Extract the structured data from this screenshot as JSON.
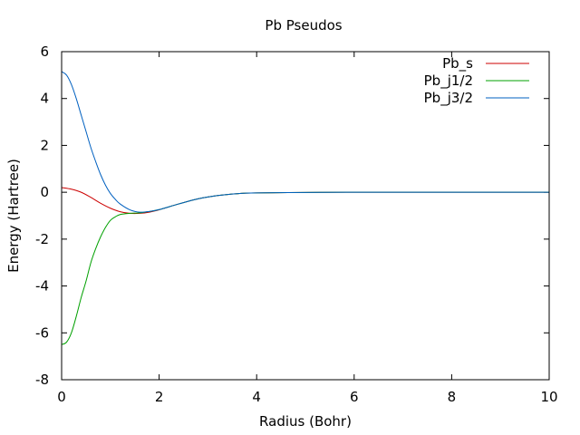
{
  "chart_data": {
    "type": "line",
    "title": "Pb Pseudos",
    "xlabel": "Radius (Bohr)",
    "ylabel": "Energy (Hartree)",
    "xlim": [
      0,
      10
    ],
    "ylim": [
      -8,
      6
    ],
    "xticks": [
      0,
      2,
      4,
      6,
      8,
      10
    ],
    "yticks": [
      -8,
      -6,
      -4,
      -2,
      0,
      2,
      4,
      6
    ],
    "grid": false,
    "legend_position": "top-right",
    "series": [
      {
        "name": "Pb_s",
        "color": "#cc0000",
        "x": [
          0,
          0.2,
          0.4,
          0.6,
          0.8,
          1.0,
          1.2,
          1.4,
          1.6,
          1.8,
          2.0,
          2.4,
          2.8,
          3.2,
          3.6,
          4.0,
          5.0,
          6.0,
          8.0,
          10.0
        ],
        "y": [
          0.2,
          0.13,
          0.0,
          -0.22,
          -0.47,
          -0.68,
          -0.83,
          -0.9,
          -0.9,
          -0.85,
          -0.75,
          -0.5,
          -0.28,
          -0.14,
          -0.06,
          -0.03,
          -0.01,
          0.0,
          0.0,
          0.0
        ]
      },
      {
        "name": "Pb_j1/2",
        "color": "#00a000",
        "x": [
          0,
          0.1,
          0.2,
          0.3,
          0.4,
          0.5,
          0.6,
          0.7,
          0.8,
          0.9,
          1.0,
          1.1,
          1.2,
          1.4,
          1.6,
          1.8,
          2.0,
          2.4,
          2.8,
          3.2,
          3.6,
          4.0,
          5.0,
          6.0,
          8.0,
          10.0
        ],
        "y": [
          -6.5,
          -6.4,
          -6.0,
          -5.3,
          -4.5,
          -3.8,
          -3.0,
          -2.4,
          -1.9,
          -1.5,
          -1.2,
          -1.05,
          -0.95,
          -0.9,
          -0.88,
          -0.82,
          -0.74,
          -0.5,
          -0.28,
          -0.14,
          -0.06,
          -0.03,
          -0.01,
          0.0,
          0.0,
          0.0
        ]
      },
      {
        "name": "Pb_j3/2",
        "color": "#0060c0",
        "x": [
          0,
          0.1,
          0.2,
          0.3,
          0.4,
          0.5,
          0.6,
          0.7,
          0.8,
          0.9,
          1.0,
          1.1,
          1.2,
          1.4,
          1.6,
          1.8,
          2.0,
          2.4,
          2.8,
          3.2,
          3.6,
          4.0,
          5.0,
          6.0,
          8.0,
          10.0
        ],
        "y": [
          5.15,
          5.0,
          4.6,
          4.0,
          3.3,
          2.6,
          1.9,
          1.3,
          0.75,
          0.3,
          -0.05,
          -0.3,
          -0.5,
          -0.75,
          -0.85,
          -0.82,
          -0.74,
          -0.5,
          -0.28,
          -0.14,
          -0.06,
          -0.03,
          -0.01,
          0.0,
          0.0,
          0.0
        ]
      }
    ]
  }
}
